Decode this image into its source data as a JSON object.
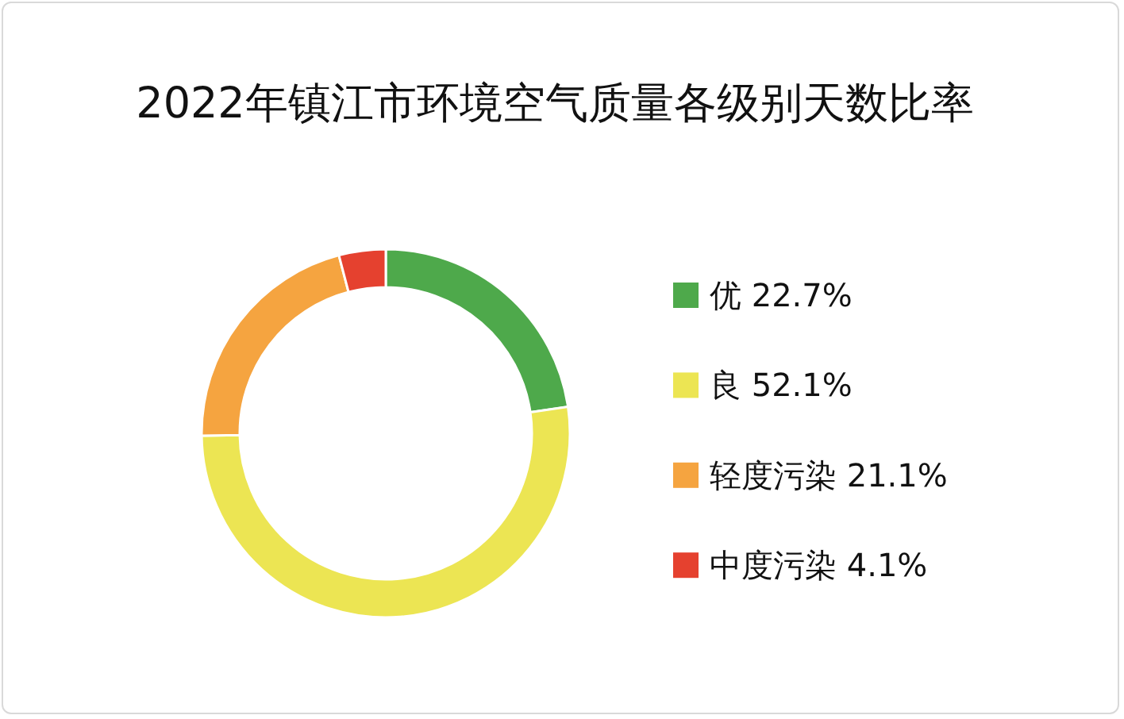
{
  "chart_data": {
    "type": "donut",
    "title": "2022年镇江市环境空气质量各级别天数比率",
    "categories": [
      "优 22.7%",
      "良 52.1%",
      "轻度污染 21.1%",
      "中度污染 4.1%"
    ],
    "values": [
      22.7,
      52.1,
      21.1,
      4.1
    ],
    "colors": [
      "#4ea94b",
      "#ece553",
      "#f5a440",
      "#e5412f"
    ],
    "legend": "right"
  }
}
